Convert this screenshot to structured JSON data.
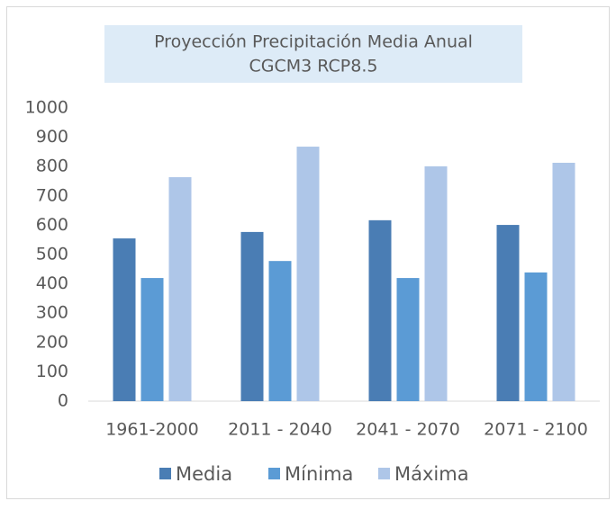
{
  "chart_data": {
    "type": "bar",
    "title": "Proyección Precipitación Media Anual",
    "subtitle": "CGCM3 RCP8.5",
    "categories": [
      "1961-2000",
      "2011 - 2040",
      "2041 - 2070",
      "2071 - 2100"
    ],
    "series": [
      {
        "name": "Media",
        "color": "#4a7db4",
        "values": [
          555,
          577,
          617,
          601
        ]
      },
      {
        "name": "Mínima",
        "color": "#5b9bd5",
        "values": [
          420,
          478,
          420,
          439
        ]
      },
      {
        "name": "Máxima",
        "color": "#aec6e8",
        "values": [
          764,
          868,
          801,
          813
        ]
      }
    ],
    "ylim": [
      0,
      1000
    ],
    "yticks": [
      0,
      100,
      200,
      300,
      400,
      500,
      600,
      700,
      800,
      900,
      1000
    ],
    "grid": false,
    "legend": "bottom"
  }
}
